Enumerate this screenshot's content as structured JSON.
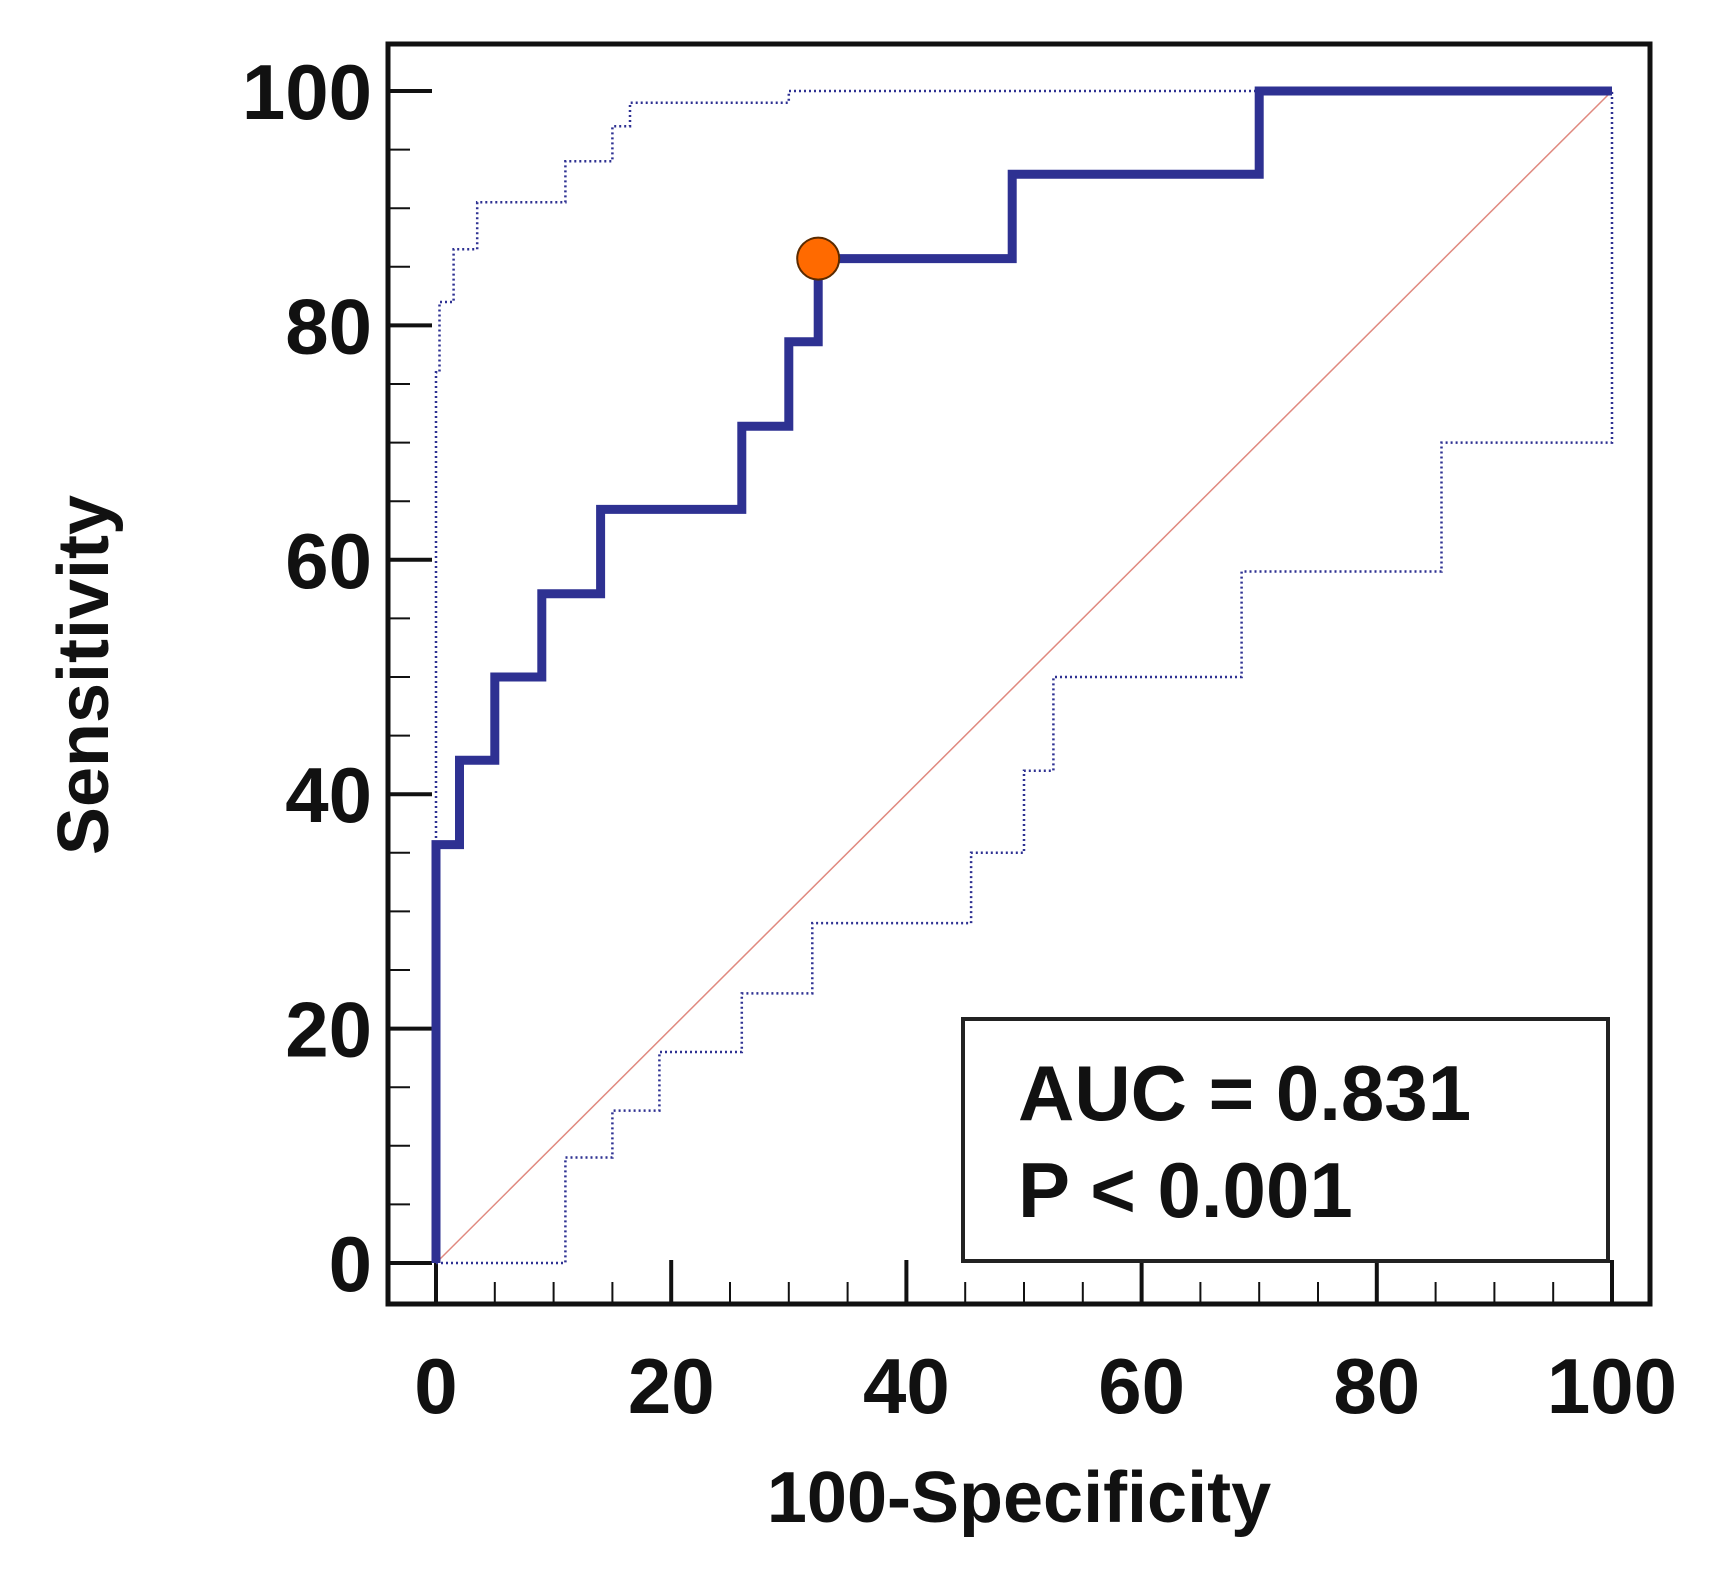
{
  "chart_data": {
    "type": "line",
    "title": "",
    "xlabel": "100-Specificity",
    "ylabel": "Sensitivity",
    "xlim": [
      0,
      100
    ],
    "ylim": [
      0,
      100
    ],
    "xticks": [
      0,
      20,
      40,
      60,
      80,
      100
    ],
    "yticks": [
      0,
      20,
      40,
      60,
      80,
      100
    ],
    "grid": false,
    "series": [
      {
        "name": "ROC curve",
        "style": "solid-thick",
        "color": "#2E3192",
        "x": [
          0,
          0,
          2,
          2,
          5,
          5,
          9,
          9,
          14,
          14,
          26,
          26,
          30,
          30,
          32.5,
          32.5,
          49,
          49,
          70,
          70,
          100
        ],
        "y": [
          0,
          35.7,
          35.7,
          42.9,
          42.9,
          50,
          50,
          57.1,
          57.1,
          64.3,
          64.3,
          71.4,
          71.4,
          78.6,
          78.6,
          85.7,
          85.7,
          92.9,
          92.9,
          100,
          100
        ]
      },
      {
        "name": "Upper 95% CI",
        "style": "dotted",
        "color": "#2E3192",
        "x": [
          0,
          0,
          0.3,
          0.3,
          1.5,
          1.5,
          3.5,
          3.5,
          11,
          11,
          15,
          15,
          16.5,
          16.5,
          30,
          30,
          100
        ],
        "y": [
          0,
          76,
          76,
          82,
          82,
          86.5,
          86.5,
          90.5,
          90.5,
          94,
          94,
          97,
          97,
          99,
          99,
          100,
          100
        ]
      },
      {
        "name": "Lower 95% CI",
        "style": "dotted",
        "color": "#2E3192",
        "x": [
          0,
          11,
          11,
          15,
          15,
          19,
          19,
          26,
          26,
          32,
          32,
          45.5,
          45.5,
          50,
          50,
          52.5,
          52.5,
          68.5,
          68.5,
          85.5,
          85.5,
          100,
          100
        ],
        "y": [
          0,
          0,
          9,
          9,
          13,
          13,
          18,
          18,
          23,
          23,
          29,
          29,
          35,
          35,
          42,
          42,
          50,
          50,
          59,
          59,
          70,
          70,
          100
        ]
      },
      {
        "name": "Reference line",
        "style": "thin",
        "color": "#E0897F",
        "x": [
          0,
          100
        ],
        "y": [
          0,
          100
        ]
      }
    ],
    "points": [
      {
        "name": "Optimal cut-off",
        "x": 32.5,
        "y": 85.7,
        "color": "#FF6A00"
      }
    ],
    "annotations": {
      "auc_text": "AUC = 0.831",
      "p_text": "P < 0.001",
      "placement": "bottom-right"
    }
  }
}
